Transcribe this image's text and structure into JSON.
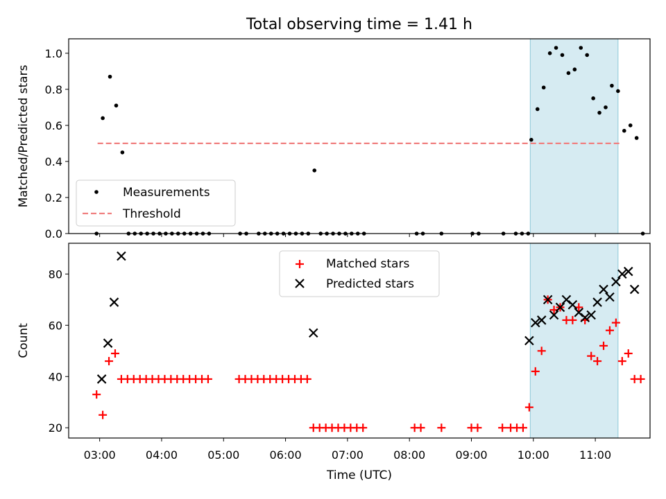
{
  "chart_data": [
    {
      "type": "scatter",
      "title": "Total observing time = 1.41 h",
      "xlabel": "",
      "ylabel": "Matched/Predicted stars",
      "xlim": [
        "02:30",
        "11:53"
      ],
      "ylim": [
        0,
        1.08
      ],
      "yticks": [
        0.0,
        0.2,
        0.4,
        0.6,
        0.8,
        1.0
      ],
      "ytick_labels": [
        "0.0",
        "0.2",
        "0.4",
        "0.6",
        "0.8",
        "1.0"
      ],
      "grid": false,
      "legend_position": "lower-left",
      "shaded_interval": {
        "start": "09:57",
        "end": "11:22",
        "color": "#add8e6"
      },
      "threshold": {
        "name": "Threshold",
        "value": 0.5,
        "start": "02:58",
        "end": "11:25",
        "color": "#f08080"
      },
      "series": [
        {
          "name": "Measurements",
          "color": "#000000",
          "points": [
            [
              "02:57",
              0.0
            ],
            [
              "03:03",
              0.64
            ],
            [
              "03:10",
              0.87
            ],
            [
              "03:16",
              0.71
            ],
            [
              "03:22",
              0.45
            ],
            [
              "03:28",
              0.0
            ],
            [
              "03:34",
              0.0
            ],
            [
              "03:40",
              0.0
            ],
            [
              "03:46",
              0.0
            ],
            [
              "03:52",
              0.0
            ],
            [
              "03:58",
              0.0
            ],
            [
              "04:04",
              0.0
            ],
            [
              "04:10",
              0.0
            ],
            [
              "04:16",
              0.0
            ],
            [
              "04:22",
              0.0
            ],
            [
              "04:28",
              0.0
            ],
            [
              "04:34",
              0.0
            ],
            [
              "04:40",
              0.0
            ],
            [
              "04:46",
              0.0
            ],
            [
              "05:16",
              0.0
            ],
            [
              "05:22",
              0.0
            ],
            [
              "05:34",
              0.0
            ],
            [
              "05:40",
              0.0
            ],
            [
              "05:46",
              0.0
            ],
            [
              "05:52",
              0.0
            ],
            [
              "05:58",
              0.0
            ],
            [
              "06:04",
              0.0
            ],
            [
              "06:10",
              0.0
            ],
            [
              "06:16",
              0.0
            ],
            [
              "06:22",
              0.0
            ],
            [
              "06:28",
              0.35
            ],
            [
              "06:34",
              0.0
            ],
            [
              "06:40",
              0.0
            ],
            [
              "06:46",
              0.0
            ],
            [
              "06:52",
              0.0
            ],
            [
              "06:58",
              0.0
            ],
            [
              "07:04",
              0.0
            ],
            [
              "07:10",
              0.0
            ],
            [
              "07:16",
              0.0
            ],
            [
              "08:07",
              0.0
            ],
            [
              "08:13",
              0.0
            ],
            [
              "08:31",
              0.0
            ],
            [
              "09:01",
              0.0
            ],
            [
              "09:07",
              0.0
            ],
            [
              "09:31",
              0.0
            ],
            [
              "09:43",
              0.0
            ],
            [
              "09:49",
              0.0
            ],
            [
              "09:55",
              0.0
            ],
            [
              "09:58",
              0.52
            ],
            [
              "10:04",
              0.69
            ],
            [
              "10:10",
              0.81
            ],
            [
              "10:16",
              1.0
            ],
            [
              "10:22",
              1.03
            ],
            [
              "10:28",
              0.99
            ],
            [
              "10:34",
              0.89
            ],
            [
              "10:40",
              0.91
            ],
            [
              "10:46",
              1.03
            ],
            [
              "10:52",
              0.99
            ],
            [
              "10:58",
              0.75
            ],
            [
              "11:04",
              0.67
            ],
            [
              "11:10",
              0.7
            ],
            [
              "11:16",
              0.82
            ],
            [
              "11:22",
              0.79
            ],
            [
              "11:28",
              0.57
            ],
            [
              "11:34",
              0.6
            ],
            [
              "11:40",
              0.53
            ],
            [
              "11:46",
              0.0
            ]
          ]
        }
      ]
    },
    {
      "type": "scatter",
      "title": "",
      "xlabel": "Time (UTC)",
      "ylabel": "Count",
      "xlim": [
        "02:30",
        "11:53"
      ],
      "ylim": [
        16,
        92
      ],
      "xticks": [
        "03:00",
        "04:00",
        "05:00",
        "06:00",
        "07:00",
        "08:00",
        "09:00",
        "10:00",
        "11:00"
      ],
      "yticks": [
        20,
        40,
        60,
        80
      ],
      "grid": false,
      "legend_position": "upper-center",
      "shaded_interval": {
        "start": "09:57",
        "end": "11:22",
        "color": "#add8e6"
      },
      "series": [
        {
          "name": "Matched stars",
          "marker": "plus",
          "color": "#ff0000",
          "points": [
            [
              "02:57",
              33
            ],
            [
              "03:03",
              25
            ],
            [
              "03:09",
              46
            ],
            [
              "03:15",
              49
            ],
            [
              "03:21",
              39
            ],
            [
              "03:27",
              39
            ],
            [
              "03:33",
              39
            ],
            [
              "03:39",
              39
            ],
            [
              "03:45",
              39
            ],
            [
              "03:51",
              39
            ],
            [
              "03:57",
              39
            ],
            [
              "04:03",
              39
            ],
            [
              "04:09",
              39
            ],
            [
              "04:15",
              39
            ],
            [
              "04:21",
              39
            ],
            [
              "04:27",
              39
            ],
            [
              "04:33",
              39
            ],
            [
              "04:39",
              39
            ],
            [
              "04:45",
              39
            ],
            [
              "05:15",
              39
            ],
            [
              "05:21",
              39
            ],
            [
              "05:27",
              39
            ],
            [
              "05:33",
              39
            ],
            [
              "05:39",
              39
            ],
            [
              "05:45",
              39
            ],
            [
              "05:51",
              39
            ],
            [
              "05:57",
              39
            ],
            [
              "06:03",
              39
            ],
            [
              "06:09",
              39
            ],
            [
              "06:15",
              39
            ],
            [
              "06:21",
              39
            ],
            [
              "06:27",
              20
            ],
            [
              "06:33",
              20
            ],
            [
              "06:39",
              20
            ],
            [
              "06:45",
              20
            ],
            [
              "06:51",
              20
            ],
            [
              "06:57",
              20
            ],
            [
              "07:03",
              20
            ],
            [
              "07:09",
              20
            ],
            [
              "07:15",
              20
            ],
            [
              "08:05",
              20
            ],
            [
              "08:11",
              20
            ],
            [
              "08:31",
              20
            ],
            [
              "09:00",
              20
            ],
            [
              "09:06",
              20
            ],
            [
              "09:30",
              20
            ],
            [
              "09:38",
              20
            ],
            [
              "09:44",
              20
            ],
            [
              "09:50",
              20
            ],
            [
              "09:56",
              28
            ],
            [
              "10:02",
              42
            ],
            [
              "10:08",
              50
            ],
            [
              "10:14",
              70
            ],
            [
              "10:20",
              66
            ],
            [
              "10:26",
              67
            ],
            [
              "10:32",
              62
            ],
            [
              "10:38",
              62
            ],
            [
              "10:44",
              67
            ],
            [
              "10:50",
              62
            ],
            [
              "10:56",
              48
            ],
            [
              "11:02",
              46
            ],
            [
              "11:08",
              52
            ],
            [
              "11:14",
              58
            ],
            [
              "11:20",
              61
            ],
            [
              "11:26",
              46
            ],
            [
              "11:32",
              49
            ],
            [
              "11:38",
              39
            ],
            [
              "11:44",
              39
            ]
          ]
        },
        {
          "name": "Predicted stars",
          "marker": "x",
          "color": "#000000",
          "points": [
            [
              "03:02",
              39
            ],
            [
              "03:08",
              53
            ],
            [
              "03:14",
              69
            ],
            [
              "03:21",
              87
            ],
            [
              "06:27",
              57
            ],
            [
              "09:56",
              54
            ],
            [
              "10:02",
              61
            ],
            [
              "10:08",
              62
            ],
            [
              "10:14",
              70
            ],
            [
              "10:20",
              64
            ],
            [
              "10:26",
              67
            ],
            [
              "10:32",
              70
            ],
            [
              "10:38",
              68
            ],
            [
              "10:44",
              65
            ],
            [
              "10:50",
              63
            ],
            [
              "10:56",
              64
            ],
            [
              "11:02",
              69
            ],
            [
              "11:08",
              74
            ],
            [
              "11:14",
              71
            ],
            [
              "11:20",
              77
            ],
            [
              "11:26",
              80
            ],
            [
              "11:32",
              81
            ],
            [
              "11:38",
              74
            ]
          ]
        }
      ]
    }
  ]
}
